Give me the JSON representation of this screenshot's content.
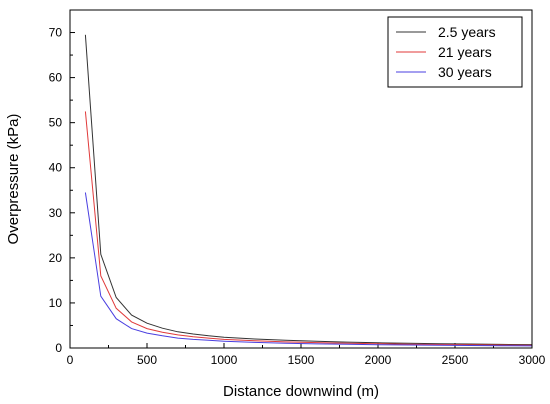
{
  "chart_data": {
    "type": "line",
    "xlabel": "Distance downwind (m)",
    "ylabel": "Overpressure (kPa)",
    "xlim": [
      0,
      3000
    ],
    "ylim": [
      0,
      75
    ],
    "xticks": [
      0,
      500,
      1000,
      1500,
      2000,
      2500,
      3000
    ],
    "yticks": [
      0,
      10,
      20,
      30,
      40,
      50,
      60,
      70
    ],
    "grid": false,
    "legend_position": "top-right",
    "x": [
      100,
      200,
      300,
      400,
      500,
      600,
      700,
      800,
      900,
      1000,
      1200,
      1400,
      1600,
      1800,
      2000,
      2200,
      2400,
      2600,
      2800,
      3000
    ],
    "series": [
      {
        "name": "2.5 years",
        "color": "#333333",
        "values": [
          69.5,
          20.8,
          11.2,
          7.3,
          5.5,
          4.4,
          3.6,
          3.1,
          2.7,
          2.4,
          2.0,
          1.7,
          1.5,
          1.3,
          1.15,
          1.05,
          0.95,
          0.88,
          0.8,
          0.75
        ]
      },
      {
        "name": "21 years",
        "color": "#e03a3a",
        "values": [
          52.5,
          16.0,
          8.8,
          5.8,
          4.3,
          3.5,
          2.9,
          2.5,
          2.2,
          1.9,
          1.6,
          1.35,
          1.2,
          1.05,
          0.95,
          0.85,
          0.78,
          0.72,
          0.66,
          0.6
        ]
      },
      {
        "name": "30 years",
        "color": "#4a3fe0",
        "values": [
          34.5,
          11.5,
          6.5,
          4.3,
          3.3,
          2.7,
          2.2,
          1.9,
          1.7,
          1.5,
          1.25,
          1.05,
          0.92,
          0.82,
          0.73,
          0.66,
          0.6,
          0.55,
          0.5,
          0.46
        ]
      }
    ]
  }
}
